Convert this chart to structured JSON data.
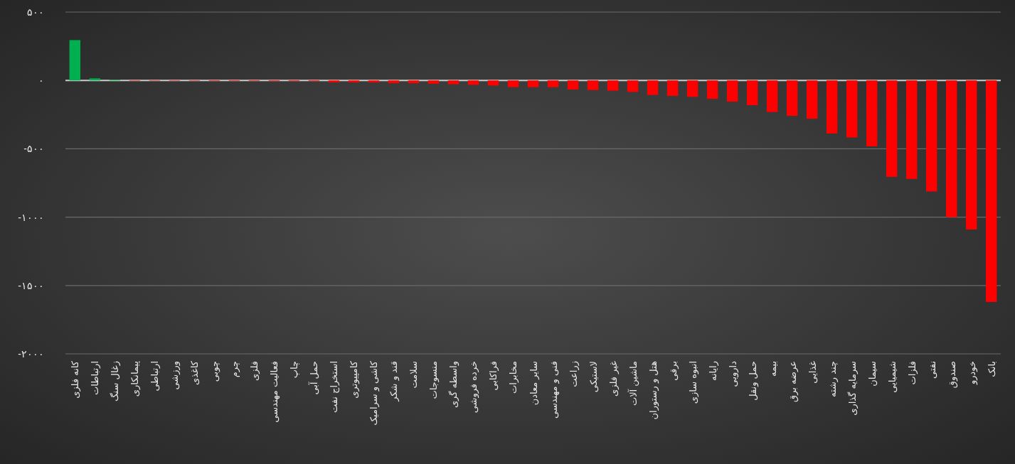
{
  "chart_data": {
    "type": "bar",
    "categories": [
      "کانه فلزی",
      "ارتباطات",
      "زغال سنگ",
      "پیمانکاری",
      "ارتباطی",
      "ورزشی",
      "کاغذی",
      "چوبی",
      "چرم",
      "فلزی",
      "فعالیت مهندسی",
      "چاپ",
      "حمل آبی",
      "استخراج نفت",
      "کامپیوتری",
      "کاشی و سرامیک",
      "قند و شکر",
      "سلامت",
      "منسوجات",
      "واسطه گری",
      "خرده فروشی",
      "فراکابی",
      "مخابرات",
      "سایر معادن",
      "فنی و مهندسی",
      "زراعت",
      "لاستیکی",
      "غیر فلزی",
      "ماشین آلات",
      "هتل و رستوران",
      "برقی",
      "انبوه سازی",
      "رایانه",
      "دارویی",
      "حمل ونقل",
      "بیمه",
      "عرضه برق",
      "غذایی",
      "چند رشته",
      "سرمایه گذاری",
      "سیمان",
      "شیمیایی",
      "فلزات",
      "نفتی",
      "صندوق",
      "خودرو",
      "بانک"
    ],
    "values": [
      295,
      15,
      5,
      -3,
      -3,
      -3,
      -3,
      -4,
      -4,
      -4,
      -5,
      -5,
      -6,
      -14,
      -14,
      -14,
      -20,
      -20,
      -24,
      -28,
      -32,
      -37,
      -49,
      -49,
      -49,
      -66,
      -70,
      -75,
      -84,
      -106,
      -113,
      -120,
      -134,
      -155,
      -181,
      -231,
      -259,
      -280,
      -388,
      -417,
      -482,
      -705,
      -720,
      -812,
      -1000,
      -1090,
      -1620
    ],
    "colors": [
      "#00b050",
      "#00b050",
      "#00b050",
      "#ff0000",
      "#ff0000",
      "#ff0000",
      "#ff0000",
      "#ff0000",
      "#ff0000",
      "#ff0000",
      "#ff0000",
      "#ff0000",
      "#ff0000",
      "#ff0000",
      "#ff0000",
      "#ff0000",
      "#ff0000",
      "#ff0000",
      "#ff0000",
      "#ff0000",
      "#ff0000",
      "#ff0000",
      "#ff0000",
      "#ff0000",
      "#ff0000",
      "#ff0000",
      "#ff0000",
      "#ff0000",
      "#ff0000",
      "#ff0000",
      "#ff0000",
      "#ff0000",
      "#ff0000",
      "#ff0000",
      "#ff0000",
      "#ff0000",
      "#ff0000",
      "#ff0000",
      "#ff0000",
      "#ff0000",
      "#ff0000",
      "#ff0000",
      "#ff0000",
      "#ff0000",
      "#ff0000",
      "#ff0000",
      "#ff0000"
    ],
    "ylim": [
      -2000,
      500
    ],
    "yticks": [
      {
        "value": 500,
        "label": "۵۰۰"
      },
      {
        "value": 0,
        "label": "٠"
      },
      {
        "value": -500,
        "label": "-۵۰۰"
      },
      {
        "value": -1000,
        "label": "-۱۰۰۰"
      },
      {
        "value": -1500,
        "label": "-۱۵۰۰"
      },
      {
        "value": -2000,
        "label": "-۲۰۰۰"
      }
    ],
    "grid": "y"
  }
}
